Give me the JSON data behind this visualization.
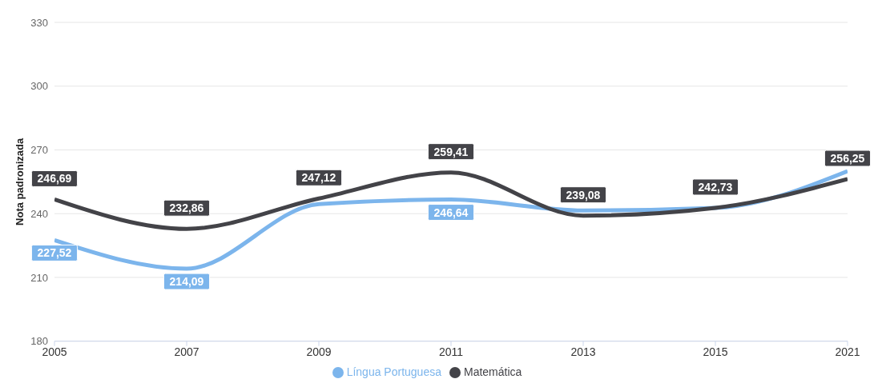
{
  "chart_data": {
    "type": "line",
    "ylabel": "Nota padronizada",
    "categories": [
      "2005",
      "2007",
      "2009",
      "2011",
      "2013",
      "2015",
      "2021"
    ],
    "series": [
      {
        "name": "Língua Portuguesa",
        "color": "#7cb5ec",
        "values": [
          227.52,
          214.09,
          244.5,
          246.64,
          241.5,
          242.7,
          260
        ],
        "value_labels": [
          "227,52",
          "214,09",
          null,
          "246,64",
          null,
          null,
          null
        ]
      },
      {
        "name": "Matemática",
        "color": "#434348",
        "values": [
          246.69,
          232.86,
          247.12,
          259.41,
          239.08,
          242.73,
          256.25
        ],
        "value_labels": [
          "246,69",
          "232,86",
          "247,12",
          "259,41",
          "239,08",
          "242,73",
          "256,25"
        ]
      }
    ],
    "ylim": [
      180,
      330
    ],
    "yticks": [
      180,
      210,
      240,
      270,
      300,
      330
    ],
    "grid": "y",
    "legend": "bottom",
    "marker": "none",
    "line_style": "solid"
  }
}
